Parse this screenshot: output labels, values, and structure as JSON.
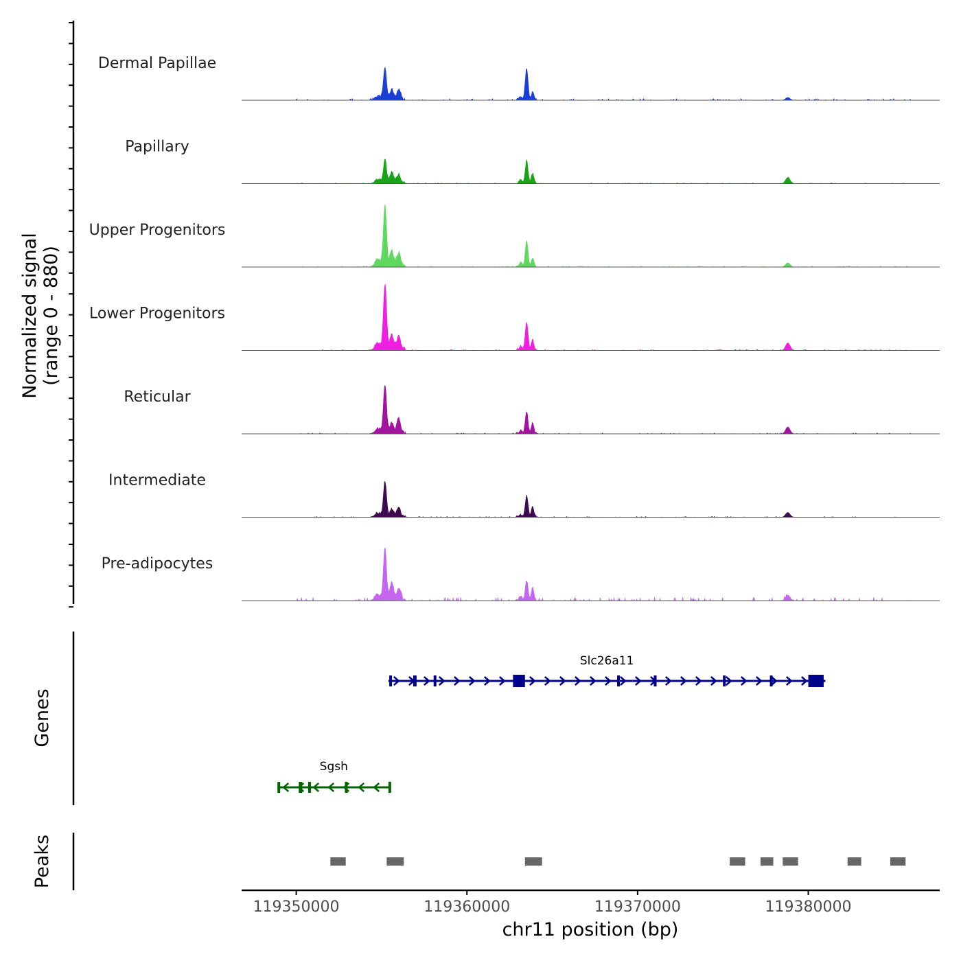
{
  "chart_data": {
    "type": "genome-coverage",
    "xlabel": "chr11 position (bp)",
    "xlim": [
      119346800,
      119387700
    ],
    "x_ticks": [
      {
        "value": 119350000,
        "label": "119350000"
      },
      {
        "value": 119360000,
        "label": "119360000"
      },
      {
        "value": 119370000,
        "label": "119370000"
      },
      {
        "value": 119380000,
        "label": "119380000"
      }
    ],
    "coverage": {
      "ylabel_line1": "Normalized signal",
      "ylabel_line2": "(range 0 - 880)",
      "ymax": 880,
      "peaks_template": [
        {
          "pos": 119355200,
          "width": 90,
          "key": "p1"
        },
        {
          "pos": 119355600,
          "width": 110,
          "key": "p2"
        },
        {
          "pos": 119356000,
          "width": 110,
          "key": "p3"
        },
        {
          "pos": 119354800,
          "width": 200,
          "key": "p4"
        },
        {
          "pos": 119363500,
          "width": 80,
          "key": "p5"
        },
        {
          "pos": 119363850,
          "width": 70,
          "key": "p6"
        },
        {
          "pos": 119363150,
          "width": 80,
          "key": "p7"
        },
        {
          "pos": 119378800,
          "width": 130,
          "key": "p8"
        }
      ],
      "tracks": [
        {
          "name": "Dermal Papillae",
          "color": "#1a3ed6",
          "p1": 0.92,
          "p2": 0.3,
          "p3": 0.28,
          "p4": 0.1,
          "p5": 0.92,
          "p6": 0.22,
          "p7": 0.08,
          "p8": 0.08,
          "noise": 0.025
        },
        {
          "name": "Papillary",
          "color": "#19a319",
          "p1": 0.66,
          "p2": 0.32,
          "p3": 0.24,
          "p4": 0.1,
          "p5": 0.66,
          "p6": 0.28,
          "p7": 0.1,
          "p8": 0.18,
          "noise": 0.012
        },
        {
          "name": "Upper Progenitors",
          "color": "#5ed85e",
          "p1": 1.72,
          "p2": 0.42,
          "p3": 0.38,
          "p4": 0.18,
          "p5": 0.76,
          "p6": 0.24,
          "p7": 0.12,
          "p8": 0.12,
          "noise": 0.012
        },
        {
          "name": "Lower Progenitors",
          "color": "#f01ee0",
          "p1": 1.9,
          "p2": 0.42,
          "p3": 0.38,
          "p4": 0.16,
          "p5": 0.82,
          "p6": 0.3,
          "p7": 0.12,
          "p8": 0.22,
          "noise": 0.015
        },
        {
          "name": "Reticular",
          "color": "#a3149e",
          "p1": 1.4,
          "p2": 0.3,
          "p3": 0.42,
          "p4": 0.12,
          "p5": 0.62,
          "p6": 0.3,
          "p7": 0.08,
          "p8": 0.2,
          "noise": 0.015
        },
        {
          "name": "Intermediate",
          "color": "#3e0a4f",
          "p1": 1.02,
          "p2": 0.22,
          "p3": 0.26,
          "p4": 0.1,
          "p5": 0.62,
          "p6": 0.28,
          "p7": 0.06,
          "p8": 0.14,
          "noise": 0.012
        },
        {
          "name": "Pre-adipocytes",
          "color": "#c566f0",
          "p1": 1.48,
          "p2": 0.5,
          "p3": 0.34,
          "p4": 0.14,
          "p5": 0.56,
          "p6": 0.36,
          "p7": 0.1,
          "p8": 0.16,
          "noise": 0.05
        }
      ]
    },
    "genes_panel": {
      "ylabel": "Genes",
      "genes": [
        {
          "name": "Slc26a11",
          "strand": "+",
          "color": "#00008b",
          "start": 119355400,
          "end": 119381000,
          "exons": [
            [
              119355450,
              119355550
            ],
            [
              119356850,
              119357050
            ],
            [
              119358050,
              119358200
            ],
            [
              119362700,
              119363400
            ],
            [
              119368800,
              119368950
            ],
            [
              119370950,
              119371100
            ],
            [
              119375000,
              119375150
            ],
            [
              119377750,
              119377850
            ],
            [
              119380000,
              119380900
            ]
          ]
        },
        {
          "name": "Sgsh",
          "strand": "-",
          "color": "#006400",
          "start": 119348900,
          "end": 119355500,
          "exons": [
            [
              119348900,
              119349050
            ],
            [
              119350150,
              119350350
            ],
            [
              119350700,
              119350800
            ],
            [
              119352850,
              119353000
            ],
            [
              119355400,
              119355500
            ]
          ]
        }
      ]
    },
    "peaks_panel": {
      "ylabel": "Peaks",
      "color": "#666666",
      "regions": [
        [
          119352000,
          119352900
        ],
        [
          119355300,
          119356300
        ],
        [
          119363400,
          119364400
        ],
        [
          119375400,
          119376300
        ],
        [
          119377200,
          119377950
        ],
        [
          119378500,
          119379400
        ],
        [
          119382300,
          119383100
        ],
        [
          119384800,
          119385700
        ]
      ]
    }
  }
}
